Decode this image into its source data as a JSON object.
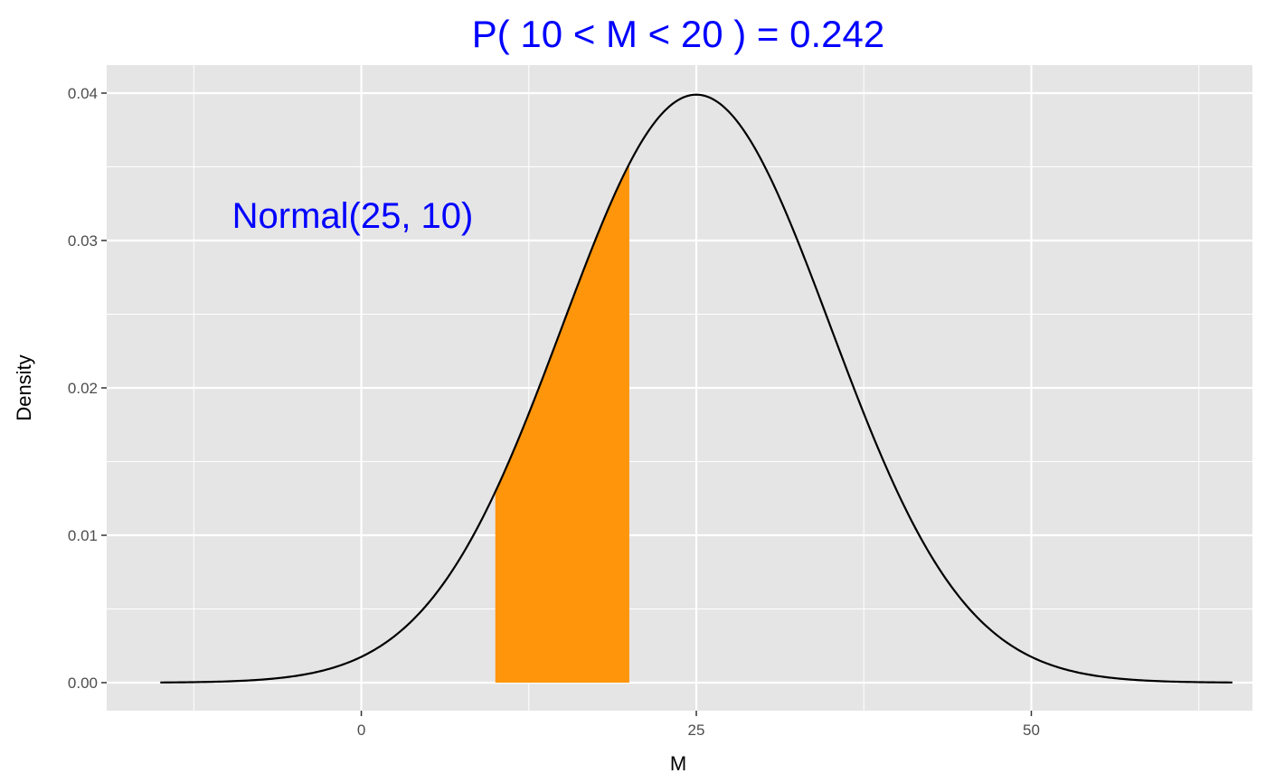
{
  "chart_data": {
    "type": "area",
    "title": "P( 10 < M <  20 ) = 0.242",
    "annotation": "Normal(25, 10)",
    "xlabel": "M",
    "ylabel": "Density",
    "distribution": {
      "mean": 25,
      "sd": 10
    },
    "curve_range": [
      -15,
      65
    ],
    "shaded_range": [
      10,
      20
    ],
    "xlim": [
      -19,
      66.5
    ],
    "ylim": [
      -0.0019,
      0.0419
    ],
    "x_ticks": [
      0,
      25,
      50
    ],
    "x_tick_labels": [
      "0",
      "25",
      "50"
    ],
    "y_ticks": [
      0,
      0.01,
      0.02,
      0.03,
      0.04
    ],
    "y_tick_labels": [
      "0.00",
      "0.01",
      "0.02",
      "0.03",
      "0.04"
    ],
    "x_minor_ticks": [
      -12.5,
      12.5,
      37.5,
      62.5
    ],
    "y_minor_ticks": [
      0.005,
      0.015,
      0.025,
      0.035
    ],
    "grid": true,
    "colors": {
      "panel": "#e5e5e5",
      "grid": "#ffffff",
      "fill": "#ff950a",
      "curve": "#000000",
      "text_accent": "#0000ff",
      "tick_text": "#4d4d4d"
    }
  }
}
